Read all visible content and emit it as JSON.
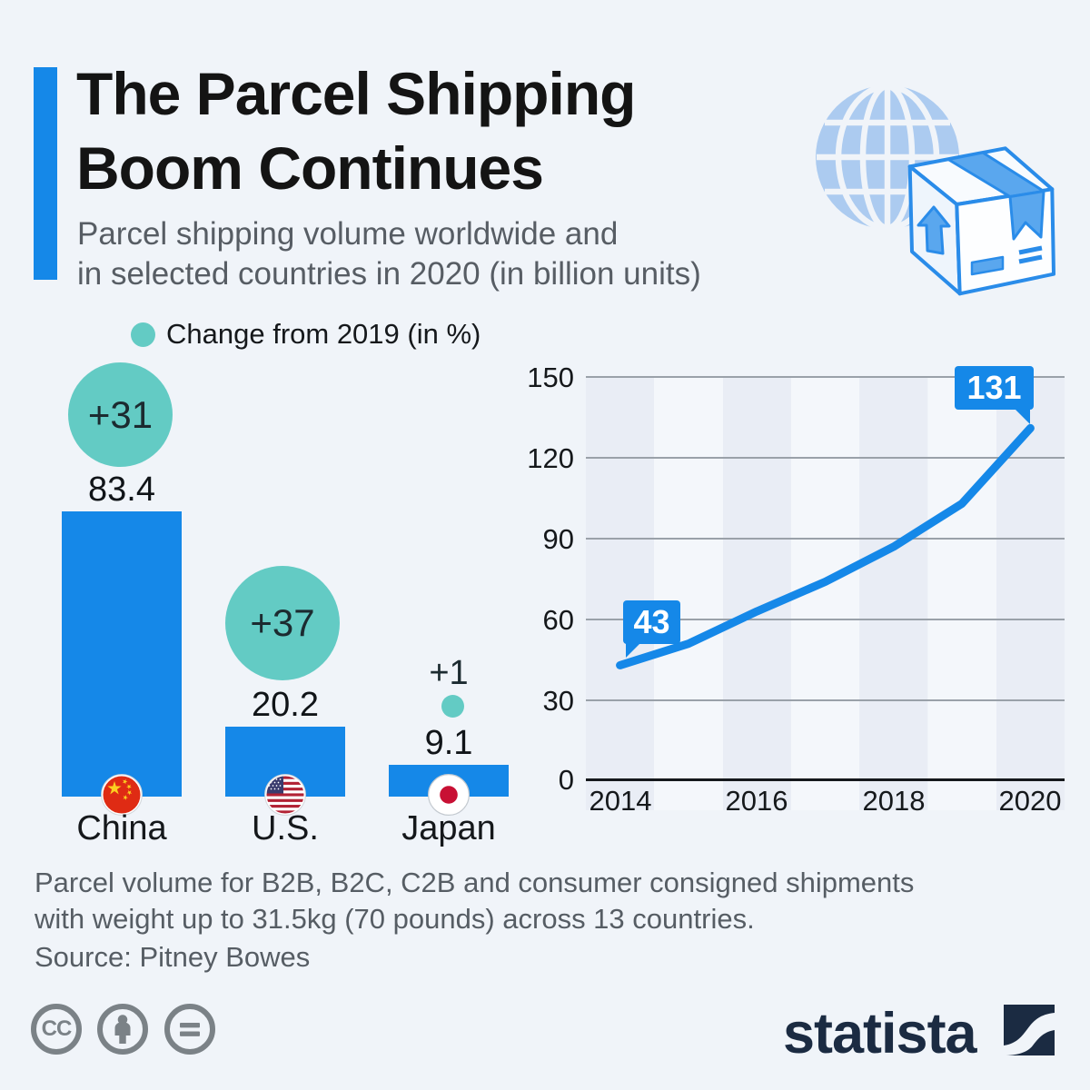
{
  "header": {
    "title_line1": "The Parcel Shipping",
    "title_line2": "Boom Continues",
    "subtitle_line1": "Parcel shipping volume worldwide and",
    "subtitle_line2": "in selected countries in 2020 (in billion units)"
  },
  "legend": {
    "label": "Change from 2019 (in %)"
  },
  "chart_data": [
    {
      "type": "bar",
      "title": "Parcel shipping volume in selected countries in 2020 (in billion units)",
      "categories": [
        "China",
        "U.S.",
        "Japan"
      ],
      "values": [
        83.4,
        20.2,
        9.1
      ],
      "change_from_2019_pct": [
        "+31",
        "+37",
        "+1"
      ],
      "bar_color": "#1588e8",
      "bubble_color": "#63cbc4",
      "flags": [
        "china-flag",
        "us-flag",
        "japan-flag"
      ]
    },
    {
      "type": "line",
      "title": "Parcel shipping volume worldwide (in billion units)",
      "x": [
        2014,
        2015,
        2016,
        2017,
        2018,
        2019,
        2020
      ],
      "values": [
        43,
        51,
        63,
        74,
        87,
        103,
        131
      ],
      "ylim": [
        0,
        150
      ],
      "yticks": [
        150,
        120,
        90,
        60,
        30,
        0
      ],
      "xticks": [
        2014,
        2016,
        2018,
        2020
      ],
      "callouts": [
        {
          "x": 2014,
          "label": "43"
        },
        {
          "x": 2020,
          "label": "131"
        }
      ],
      "line_color": "#1588e8",
      "grid": true,
      "legend_position": "none"
    }
  ],
  "footer": {
    "note_line1": "Parcel volume for B2B, B2C, C2B and consumer consigned shipments",
    "note_line2": "with weight up to 31.5kg (70 pounds) across 13 countries.",
    "source": "Source: Pitney Bowes",
    "cc_label": "CC",
    "brand": "statista"
  },
  "colors": {
    "background": "#f0f4f9",
    "primary_blue": "#1588e8",
    "teal": "#63cbc4",
    "statista_navy": "#1b2b42",
    "text_gray": "#575d64"
  }
}
